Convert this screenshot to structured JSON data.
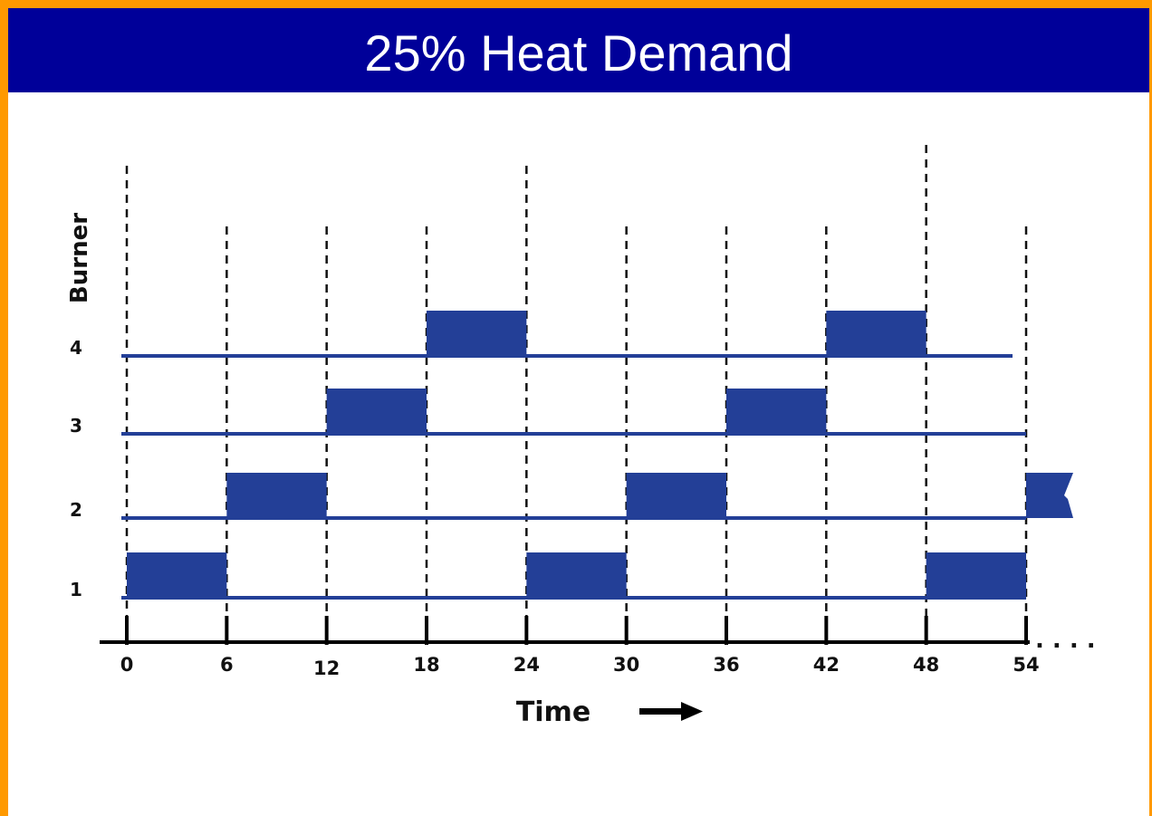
{
  "slide": {
    "title": "25% Heat Demand"
  },
  "chart_data": {
    "type": "timeline",
    "ylabel": "Burner",
    "xlabel": "Time",
    "x_ticks": [
      "0",
      "6",
      "12",
      "18",
      "24",
      "30",
      "36",
      "42",
      "48",
      "54"
    ],
    "x_range": [
      0,
      54
    ],
    "y_ticks": [
      "1",
      "2",
      "3",
      "4"
    ],
    "continuation": ". . . .",
    "bar_color": "#233f97",
    "bars": [
      {
        "burner": 1,
        "start": 0,
        "end": 6
      },
      {
        "burner": 2,
        "start": 6,
        "end": 12
      },
      {
        "burner": 3,
        "start": 12,
        "end": 18
      },
      {
        "burner": 4,
        "start": 18,
        "end": 24
      },
      {
        "burner": 1,
        "start": 24,
        "end": 30
      },
      {
        "burner": 2,
        "start": 30,
        "end": 36
      },
      {
        "burner": 3,
        "start": 36,
        "end": 42
      },
      {
        "burner": 4,
        "start": 42,
        "end": 48
      },
      {
        "burner": 1,
        "start": 48,
        "end": 54
      },
      {
        "burner": 2,
        "start": 54,
        "end": 57,
        "truncated": true
      }
    ]
  }
}
